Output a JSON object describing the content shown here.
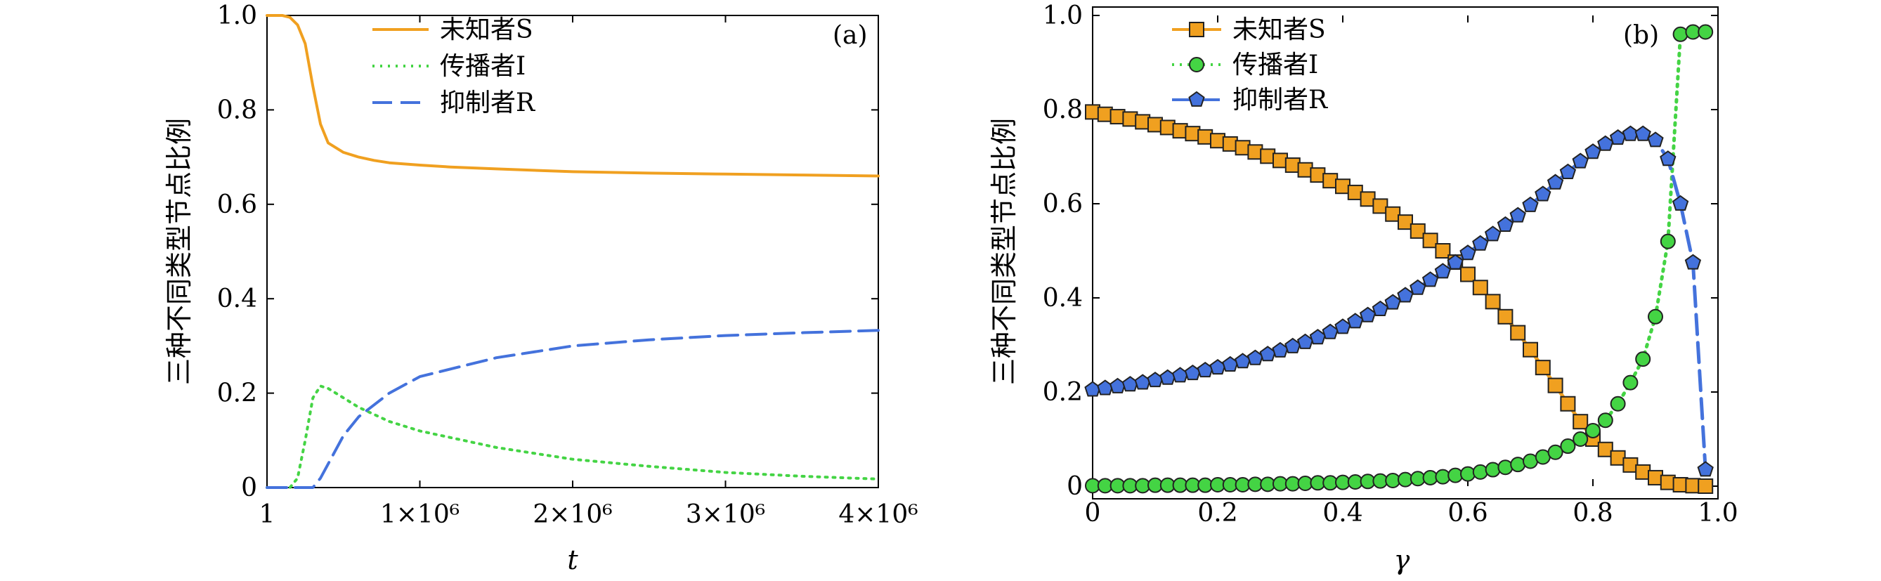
{
  "chart_data": [
    {
      "type": "line",
      "panel_label": "(a)",
      "xlabel": "t",
      "ylabel": "三种不同类型节点比例",
      "xlim": [
        0,
        4000000
      ],
      "ylim": [
        0,
        1.0
      ],
      "x_tick_labels": [
        "1",
        "1×10⁶",
        "2×10⁶",
        "3×10⁶",
        "4×10⁶"
      ],
      "y_tick_labels": [
        "0",
        "0.2",
        "0.4",
        "0.6",
        "0.8",
        "1.0"
      ],
      "legend_position": "top-center",
      "series": [
        {
          "name": "未知者S",
          "color": "#f0a020",
          "style": "solid",
          "x": [
            0,
            100000,
            150000,
            200000,
            250000,
            300000,
            350000,
            400000,
            450000,
            500000,
            600000,
            700000,
            800000,
            1000000,
            1200000,
            1500000,
            2000000,
            2500000,
            3000000,
            3500000,
            4000000
          ],
          "y": [
            1.0,
            1.0,
            0.996,
            0.98,
            0.94,
            0.85,
            0.77,
            0.73,
            0.72,
            0.71,
            0.7,
            0.693,
            0.688,
            0.683,
            0.679,
            0.675,
            0.669,
            0.666,
            0.664,
            0.662,
            0.66
          ]
        },
        {
          "name": "传播者I",
          "color": "#44d444",
          "style": "dotted",
          "x": [
            0,
            150000,
            200000,
            250000,
            300000,
            350000,
            400000,
            500000,
            600000,
            800000,
            1000000,
            1500000,
            2000000,
            2500000,
            3000000,
            3500000,
            4000000
          ],
          "y": [
            0.0,
            0.0,
            0.02,
            0.1,
            0.19,
            0.215,
            0.21,
            0.19,
            0.17,
            0.14,
            0.12,
            0.085,
            0.06,
            0.045,
            0.032,
            0.024,
            0.018
          ]
        },
        {
          "name": "抑制者R",
          "color": "#4472dc",
          "style": "dashed",
          "x": [
            0,
            300000,
            350000,
            400000,
            500000,
            600000,
            800000,
            1000000,
            1500000,
            2000000,
            2500000,
            3000000,
            3500000,
            4000000
          ],
          "y": [
            0.0,
            0.0,
            0.02,
            0.05,
            0.11,
            0.15,
            0.2,
            0.235,
            0.275,
            0.3,
            0.313,
            0.322,
            0.328,
            0.333
          ]
        }
      ]
    },
    {
      "type": "line",
      "panel_label": "(b)",
      "xlabel": "γ",
      "ylabel": "三种不同类型节点比例",
      "xlim": [
        0,
        1.0
      ],
      "ylim": [
        0,
        1.0
      ],
      "x_tick_labels": [
        "0",
        "0.2",
        "0.4",
        "0.6",
        "0.8",
        "1.0"
      ],
      "y_tick_labels": [
        "0",
        "0.2",
        "0.4",
        "0.6",
        "0.8",
        "1.0"
      ],
      "legend_position": "top-left",
      "series": [
        {
          "name": "未知者S",
          "color": "#f0a020",
          "marker": "square",
          "style": "solid",
          "x": [
            0,
            0.02,
            0.04,
            0.06,
            0.08,
            0.1,
            0.12,
            0.14,
            0.16,
            0.18,
            0.2,
            0.22,
            0.24,
            0.26,
            0.28,
            0.3,
            0.32,
            0.34,
            0.36,
            0.38,
            0.4,
            0.42,
            0.44,
            0.46,
            0.48,
            0.5,
            0.52,
            0.54,
            0.56,
            0.58,
            0.6,
            0.62,
            0.64,
            0.66,
            0.68,
            0.7,
            0.72,
            0.74,
            0.76,
            0.78,
            0.8,
            0.82,
            0.84,
            0.86,
            0.88,
            0.9,
            0.92,
            0.94,
            0.96,
            0.98
          ],
          "y": [
            0.795,
            0.79,
            0.785,
            0.78,
            0.774,
            0.768,
            0.762,
            0.755,
            0.749,
            0.742,
            0.734,
            0.727,
            0.719,
            0.71,
            0.701,
            0.692,
            0.682,
            0.672,
            0.661,
            0.649,
            0.637,
            0.624,
            0.61,
            0.595,
            0.578,
            0.561,
            0.542,
            0.522,
            0.5,
            0.476,
            0.45,
            0.422,
            0.392,
            0.36,
            0.326,
            0.29,
            0.252,
            0.214,
            0.175,
            0.137,
            0.1,
            0.078,
            0.06,
            0.045,
            0.03,
            0.018,
            0.008,
            0.003,
            0.001,
            0.0
          ]
        },
        {
          "name": "传播者I",
          "color": "#44d444",
          "marker": "circle",
          "style": "dotted",
          "x": [
            0,
            0.02,
            0.04,
            0.06,
            0.08,
            0.1,
            0.12,
            0.14,
            0.16,
            0.18,
            0.2,
            0.22,
            0.24,
            0.26,
            0.28,
            0.3,
            0.32,
            0.34,
            0.36,
            0.38,
            0.4,
            0.42,
            0.44,
            0.46,
            0.48,
            0.5,
            0.52,
            0.54,
            0.56,
            0.58,
            0.6,
            0.62,
            0.64,
            0.66,
            0.68,
            0.7,
            0.72,
            0.74,
            0.76,
            0.78,
            0.8,
            0.82,
            0.84,
            0.86,
            0.88,
            0.9,
            0.92,
            0.94,
            0.96,
            0.98
          ],
          "y": [
            0.001,
            0.001,
            0.001,
            0.001,
            0.001,
            0.002,
            0.002,
            0.002,
            0.002,
            0.002,
            0.003,
            0.003,
            0.003,
            0.004,
            0.004,
            0.005,
            0.005,
            0.006,
            0.007,
            0.007,
            0.008,
            0.009,
            0.01,
            0.011,
            0.012,
            0.014,
            0.016,
            0.018,
            0.02,
            0.023,
            0.026,
            0.03,
            0.035,
            0.04,
            0.046,
            0.053,
            0.062,
            0.072,
            0.085,
            0.1,
            0.118,
            0.14,
            0.175,
            0.22,
            0.27,
            0.36,
            0.52,
            0.96,
            0.965,
            0.965
          ]
        },
        {
          "name": "抑制者R",
          "color": "#4472dc",
          "marker": "pentagon",
          "style": "dashed",
          "x": [
            0,
            0.02,
            0.04,
            0.06,
            0.08,
            0.1,
            0.12,
            0.14,
            0.16,
            0.18,
            0.2,
            0.22,
            0.24,
            0.26,
            0.28,
            0.3,
            0.32,
            0.34,
            0.36,
            0.38,
            0.4,
            0.42,
            0.44,
            0.46,
            0.48,
            0.5,
            0.52,
            0.54,
            0.56,
            0.58,
            0.6,
            0.62,
            0.64,
            0.66,
            0.68,
            0.7,
            0.72,
            0.74,
            0.76,
            0.78,
            0.8,
            0.82,
            0.84,
            0.86,
            0.88,
            0.9,
            0.92,
            0.94,
            0.96,
            0.98
          ],
          "y": [
            0.205,
            0.208,
            0.212,
            0.216,
            0.22,
            0.225,
            0.23,
            0.235,
            0.24,
            0.246,
            0.252,
            0.258,
            0.265,
            0.272,
            0.28,
            0.288,
            0.297,
            0.306,
            0.316,
            0.327,
            0.338,
            0.35,
            0.363,
            0.376,
            0.39,
            0.405,
            0.421,
            0.438,
            0.456,
            0.475,
            0.495,
            0.515,
            0.535,
            0.555,
            0.575,
            0.597,
            0.62,
            0.645,
            0.667,
            0.69,
            0.71,
            0.727,
            0.74,
            0.748,
            0.748,
            0.735,
            0.695,
            0.6,
            0.475,
            0.035
          ]
        }
      ]
    }
  ]
}
